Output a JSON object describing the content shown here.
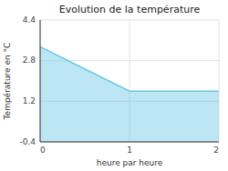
{
  "chart_data": {
    "type": "area",
    "title": "Evolution de la température",
    "x_label": "heure par heure",
    "y_label": "Température en °C",
    "x": [
      0,
      1,
      2
    ],
    "values": [
      3.35,
      1.6,
      1.6
    ],
    "xlim": [
      0,
      2
    ],
    "ylim": [
      -0.4,
      4.4
    ],
    "xticks": [
      0,
      1,
      2
    ],
    "yticks": [
      -0.4,
      1.2,
      2.8,
      4.4
    ],
    "grid": true,
    "color": "#6bc8e0"
  }
}
